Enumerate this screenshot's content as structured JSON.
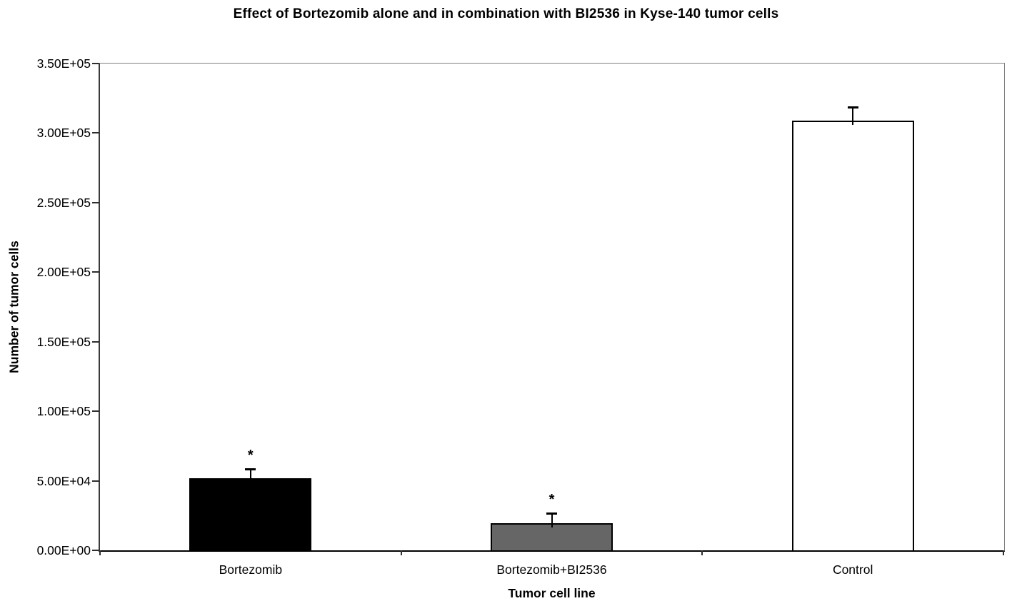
{
  "chart_data": {
    "type": "bar",
    "title": "Effect of Bortezomib alone and in combination with BI2536 in Kyse-140 tumor cells",
    "xlabel": "Tumor cell line",
    "ylabel": "Number of tumor cells",
    "categories": [
      "Bortezomib",
      "Bortezomib+BI2536",
      "Control"
    ],
    "values": [
      52000,
      19500,
      309000
    ],
    "errors_upper": [
      6500,
      7200,
      9700
    ],
    "significance": [
      "*",
      "*",
      ""
    ],
    "bar_colors": [
      "#000000",
      "#666666",
      "#ffffff"
    ],
    "bar_border_color": "#000000",
    "ylim": [
      0,
      350000
    ],
    "ytick_step": 50000,
    "ytick_labels": [
      "0.00E+00",
      "5.00E+04",
      "1.00E+05",
      "1.50E+05",
      "2.00E+05",
      "2.50E+05",
      "3.00E+05",
      "3.50E+05"
    ],
    "grid": false,
    "legend": false,
    "frame_color": "#808080",
    "axis_color": "#000000",
    "text_color": "#000000"
  }
}
